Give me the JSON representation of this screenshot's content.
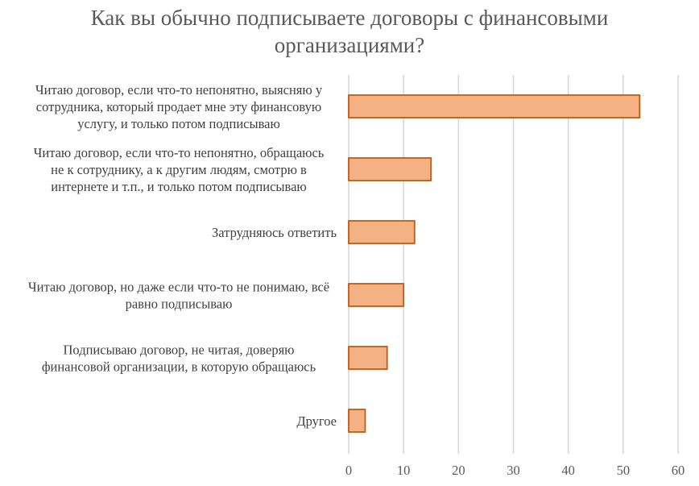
{
  "chart_data": {
    "type": "bar",
    "orientation": "horizontal",
    "title": "Как вы обычно подписываете договоры с финансовыми организациями?",
    "title_lines": [
      "Как вы обычно подписываете договоры с финансовыми",
      "организациями?"
    ],
    "categories": [
      "Читаю договор, если что-то непонятно, выясняю у сотрудника, который продает мне эту финансовую услугу, и только потом подписываю",
      "Читаю договор, если что-то непонятно, обращаюсь не к сотруднику, а к другим людям, смотрю в интернете и т.п., и только потом подписываю",
      "Затрудняюсь ответить",
      "Читаю договор, но даже если что-то не понимаю, всё равно подписываю",
      "Подписываю договор, не читая, доверяю финансовой организации, в которую обращаюсь",
      "Другое"
    ],
    "category_lines": [
      [
        "Читаю договор, если что-то непонятно, выясняю у",
        "сотрудника, который продает мне эту финансовую",
        "услугу, и только потом подписываю"
      ],
      [
        "Читаю договор, если что-то непонятно, обращаюсь",
        "не к сотруднику, а к другим людям, смотрю в",
        "интернете и т.п., и только потом подписываю"
      ],
      [
        "Затрудняюсь ответить"
      ],
      [
        "Читаю договор, но даже если что-то не понимаю, всё",
        "равно подписываю"
      ],
      [
        "Подписываю договор, не читая, доверяю",
        "финансовой организации, в которую обращаюсь"
      ],
      [
        "Другое"
      ]
    ],
    "values": [
      53,
      15,
      12,
      10,
      7,
      3
    ],
    "xlim": [
      0,
      60
    ],
    "xticks": [
      0,
      10,
      20,
      30,
      40,
      50,
      60
    ],
    "xtick_labels": [
      "0",
      "10",
      "20",
      "30",
      "40",
      "50",
      "60"
    ],
    "grid": true,
    "legend": "none",
    "bar_fill": "#F4B183",
    "bar_stroke": "#C55A11",
    "grid_color": "#D9D9D9"
  }
}
